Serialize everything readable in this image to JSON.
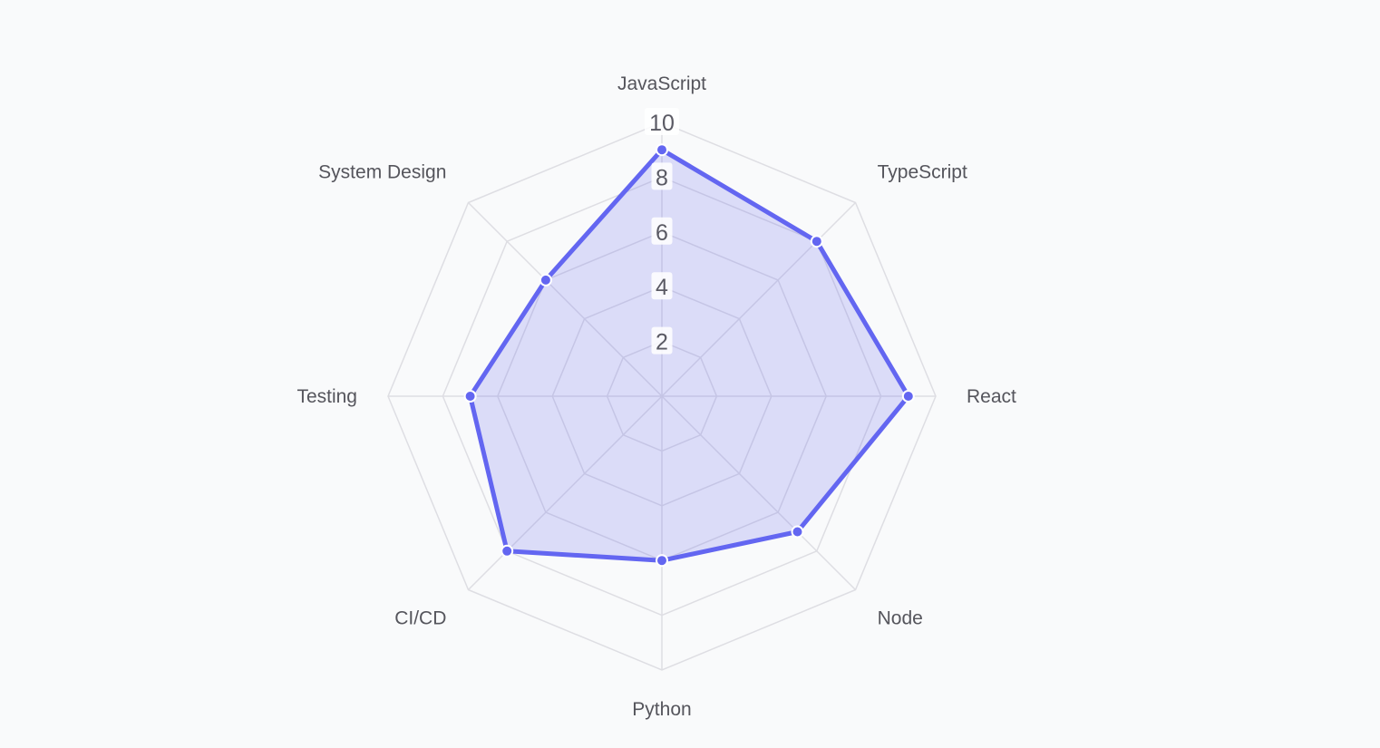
{
  "chart_data": {
    "type": "radar",
    "categories": [
      "JavaScript",
      "TypeScript",
      "React",
      "Node",
      "Python",
      "CI/CD",
      "Testing",
      "System Design"
    ],
    "series": [
      {
        "values": [
          9,
          8,
          9,
          7,
          6,
          8,
          7,
          6
        ]
      }
    ],
    "rlim": [
      0,
      10
    ],
    "ticks": [
      "2",
      "4",
      "6",
      "8",
      "10"
    ],
    "grid": true,
    "colors": {
      "series": "#6366f1",
      "grid": "#dedee3",
      "background": "#f9fafb"
    }
  }
}
